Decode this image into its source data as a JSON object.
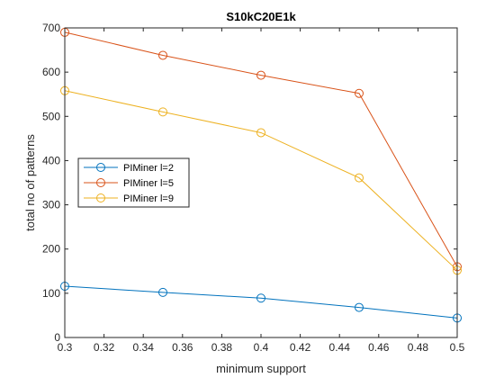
{
  "chart_data": {
    "type": "line",
    "title": "S10kC20E1k",
    "xlabel": "minimum support",
    "ylabel": "total no of patterns",
    "xlim": [
      0.3,
      0.5
    ],
    "ylim": [
      0,
      700
    ],
    "xticks": [
      0.3,
      0.32,
      0.34,
      0.36,
      0.38,
      0.4,
      0.42,
      0.44,
      0.46,
      0.48,
      0.5
    ],
    "xtick_labels": [
      "0.3",
      "0.32",
      "0.34",
      "0.36",
      "0.38",
      "0.4",
      "0.42",
      "0.44",
      "0.46",
      "0.48",
      "0.5"
    ],
    "yticks": [
      0,
      100,
      200,
      300,
      400,
      500,
      600,
      700
    ],
    "ytick_labels": [
      "0",
      "100",
      "200",
      "300",
      "400",
      "500",
      "600",
      "700"
    ],
    "grid": false,
    "legend_position": "middle-left",
    "x": [
      0.3,
      0.35,
      0.4,
      0.45,
      0.5
    ],
    "series": [
      {
        "name": "PIMiner l=2",
        "color": "#0072BD",
        "marker": "circle",
        "values": [
          116,
          102,
          89,
          68,
          44
        ]
      },
      {
        "name": "PIMiner l=5",
        "color": "#D95319",
        "marker": "circle",
        "values": [
          690,
          638,
          593,
          552,
          160
        ]
      },
      {
        "name": "PIMiner l=9",
        "color": "#EDB120",
        "marker": "circle",
        "values": [
          558,
          510,
          463,
          361,
          152
        ]
      }
    ]
  }
}
